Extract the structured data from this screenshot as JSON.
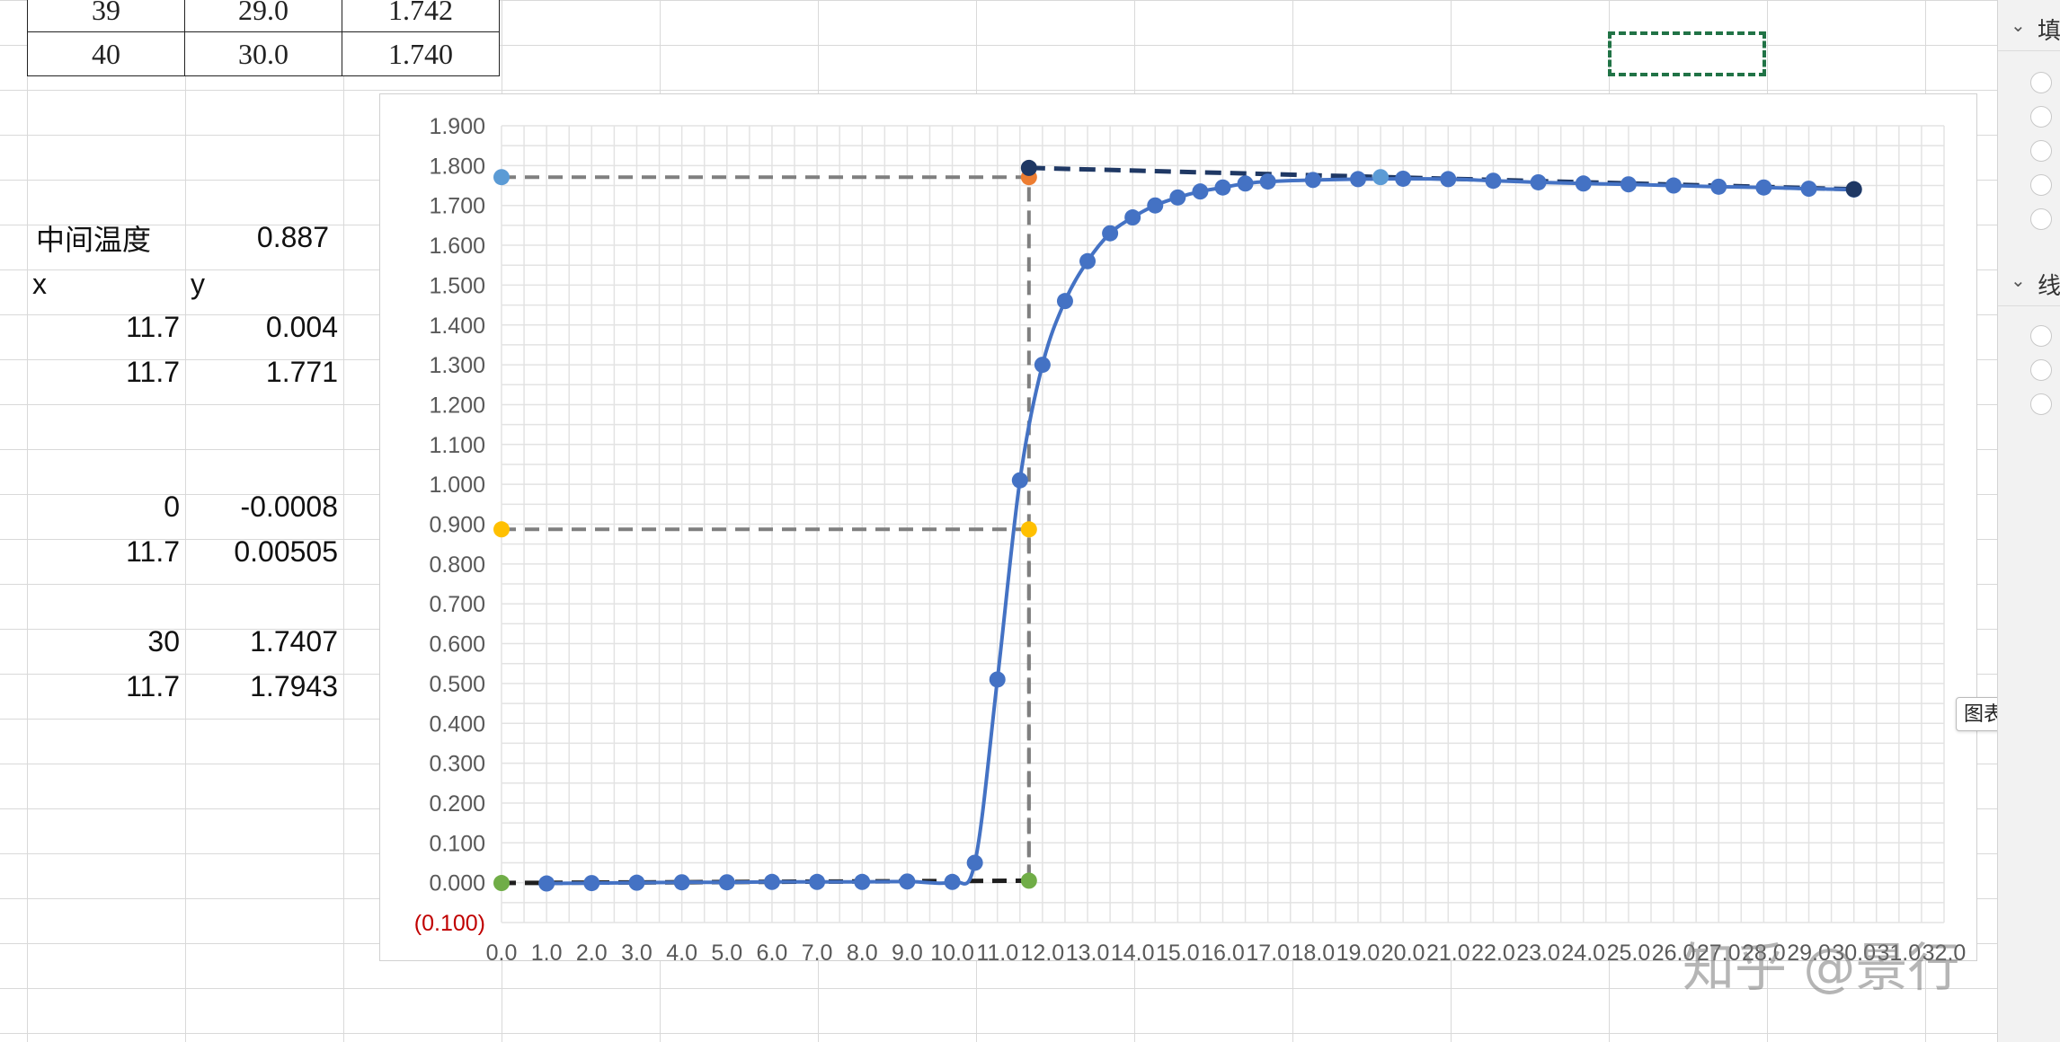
{
  "spreadsheet": {
    "top_rows": [
      [
        "39",
        "29.0",
        "1.742"
      ],
      [
        "40",
        "30.0",
        "1.740"
      ]
    ],
    "mid_temp_label": "中间温度",
    "mid_temp_value": "0.887",
    "x_header": "x",
    "y_header": "y",
    "pairs": [
      [
        "11.7",
        "0.004"
      ],
      [
        "11.7",
        "1.771"
      ],
      [
        "0",
        "-0.0008"
      ],
      [
        "11.7",
        "0.00505"
      ],
      [
        "30",
        "1.7407"
      ],
      [
        "11.7",
        "1.7943"
      ]
    ]
  },
  "ui": {
    "tooltip": "图表区",
    "panel_fill": "填",
    "panel_line": "线",
    "watermark": "知乎 @景行"
  },
  "colors": {
    "series_main": "#4472c4",
    "dashed_gray": "#7f7f7f",
    "dashed_dark": "#1f1f1f",
    "dashed_navy": "#1f3864",
    "neg_label": "#c00000",
    "pt_lightblue": "#5b9bd5",
    "pt_orange": "#ed7d31",
    "pt_yellow": "#ffc000",
    "pt_green": "#70ad47",
    "pt_navy": "#1f3864"
  },
  "chart_data": {
    "type": "scatter",
    "title": "",
    "xlabel": "",
    "ylabel": "",
    "xlim": [
      0,
      32
    ],
    "ylim": [
      -0.1,
      1.9
    ],
    "x_ticks": [
      "0.0",
      "1.0",
      "2.0",
      "3.0",
      "4.0",
      "5.0",
      "6.0",
      "7.0",
      "8.0",
      "9.0",
      "10.0",
      "11.0",
      "12.0",
      "13.0",
      "14.0",
      "15.0",
      "16.0",
      "17.0",
      "18.0",
      "19.0",
      "20.0",
      "21.0",
      "22.0",
      "23.0",
      "24.0",
      "25.0",
      "26.0",
      "27.0",
      "28.0",
      "29.0",
      "30.0",
      "31.0",
      "32.0"
    ],
    "y_ticks": [
      "(0.100)",
      "0.000",
      "0.100",
      "0.200",
      "0.300",
      "0.400",
      "0.500",
      "0.600",
      "0.700",
      "0.800",
      "0.900",
      "1.000",
      "1.100",
      "1.200",
      "1.300",
      "1.400",
      "1.500",
      "1.600",
      "1.700",
      "1.800",
      "1.900"
    ],
    "grid": true,
    "legend": "none",
    "series": [
      {
        "style": "smooth-line-markers",
        "x": [
          1,
          2,
          3,
          4,
          5,
          6,
          7,
          8,
          9,
          10,
          10.5,
          11,
          11.5,
          12,
          12.5,
          13,
          13.5,
          14,
          14.5,
          15,
          15.5,
          16,
          16.5,
          17,
          18,
          19,
          20,
          21,
          22,
          23,
          24,
          25,
          26,
          27,
          28,
          29,
          30
        ],
        "y": [
          -0.002,
          -0.001,
          0,
          0.001,
          0.001,
          0.002,
          0.002,
          0.002,
          0.003,
          0.002,
          0.05,
          0.51,
          1.01,
          1.3,
          1.46,
          1.56,
          1.63,
          1.67,
          1.7,
          1.72,
          1.735,
          1.745,
          1.755,
          1.76,
          1.764,
          1.766,
          1.767,
          1.766,
          1.762,
          1.758,
          1.755,
          1.753,
          1.75,
          1.747,
          1.745,
          1.742,
          1.74
        ]
      },
      {
        "style": "dashed-gray",
        "x": [
          0,
          11.7,
          11.7
        ],
        "y": [
          1.771,
          1.771,
          0.004
        ]
      },
      {
        "style": "dashed-gray",
        "x": [
          0,
          11.7,
          11.7
        ],
        "y": [
          0.887,
          0.887,
          0.004
        ]
      },
      {
        "style": "dashed-dark",
        "x": [
          0,
          11.7
        ],
        "y": [
          -0.0008,
          0.00505
        ]
      },
      {
        "style": "dashed-navy",
        "x": [
          11.7,
          30
        ],
        "y": [
          1.7943,
          1.7407
        ]
      }
    ],
    "markers": [
      {
        "x": 0,
        "y": 1.771,
        "color": "pt_lightblue"
      },
      {
        "x": 11.7,
        "y": 1.771,
        "color": "pt_orange"
      },
      {
        "x": 0,
        "y": 0.887,
        "color": "pt_yellow"
      },
      {
        "x": 11.7,
        "y": 0.887,
        "color": "pt_yellow"
      },
      {
        "x": 0,
        "y": -0.0008,
        "color": "pt_green"
      },
      {
        "x": 11.7,
        "y": 0.00505,
        "color": "pt_green"
      },
      {
        "x": 11.7,
        "y": 1.7943,
        "color": "pt_navy"
      },
      {
        "x": 30,
        "y": 1.7407,
        "color": "pt_navy"
      },
      {
        "x": 19.5,
        "y": 1.771,
        "color": "pt_lightblue"
      }
    ]
  }
}
